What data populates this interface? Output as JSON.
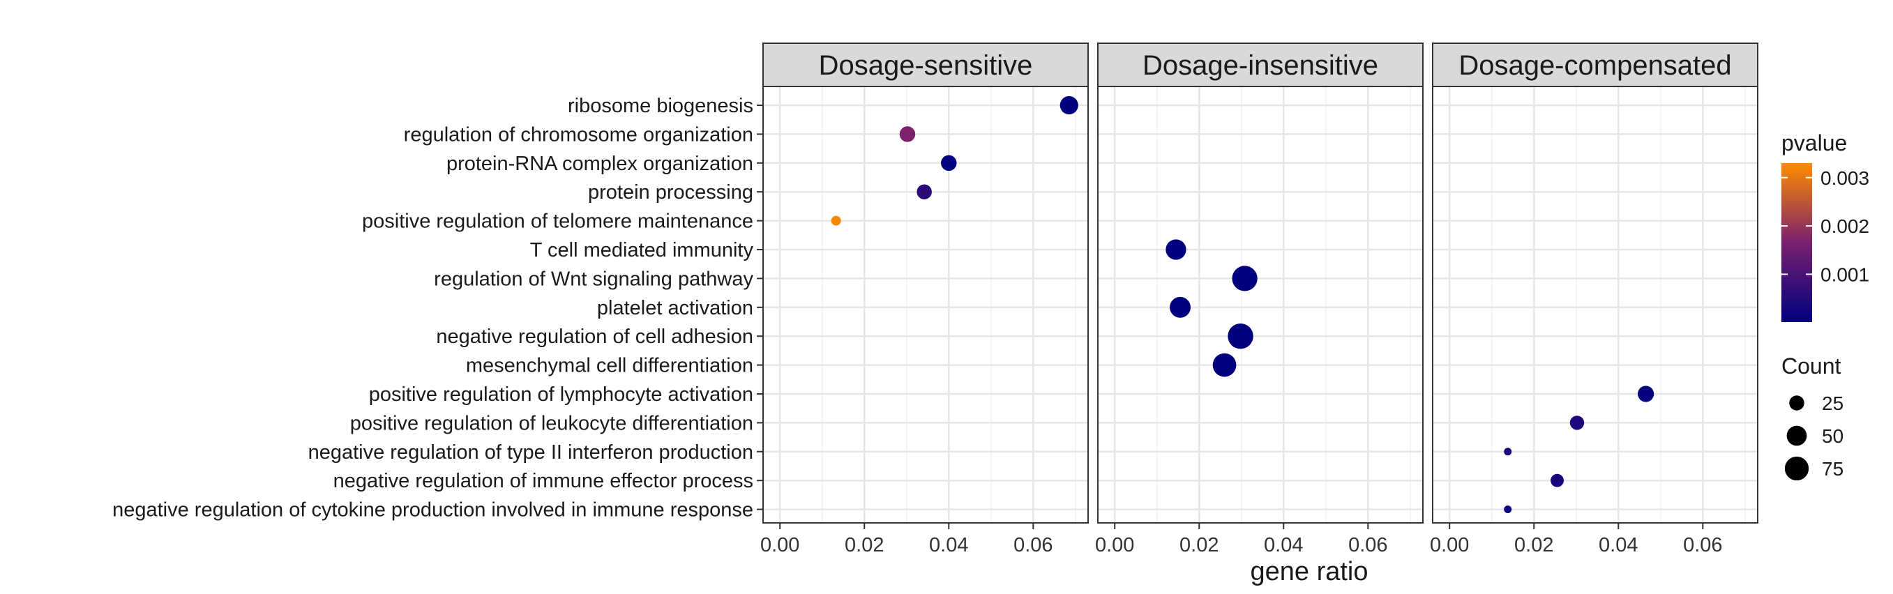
{
  "chart_data": {
    "type": "scatter",
    "xlabel": "gene ratio",
    "ylabel": "",
    "xlim": [
      -0.004,
      0.073
    ],
    "xticks": [
      "0.00",
      "0.02",
      "0.04",
      "0.06"
    ],
    "xtick_values": [
      0,
      0.02,
      0.04,
      0.06
    ],
    "grid": true,
    "legend_position": "right",
    "categories": [
      "ribosome biogenesis",
      "regulation of chromosome organization",
      "protein-RNA complex organization",
      "protein processing",
      "positive regulation of telomere maintenance",
      "T cell mediated immunity",
      "regulation of Wnt signaling pathway",
      "platelet activation",
      "negative regulation of cell adhesion",
      "mesenchymal cell differentiation",
      "positive regulation of lymphocyte activation",
      "positive regulation of leukocyte differentiation",
      "negative regulation of type II interferon production",
      "negative regulation of immune effector process",
      "negative regulation of cytokine production involved in immune response"
    ],
    "panels": [
      {
        "name": "Dosage-sensitive",
        "points": [
          {
            "category": "ribosome biogenesis",
            "x": 0.0685,
            "count": 40,
            "pvalue": 1e-05
          },
          {
            "category": "regulation of chromosome organization",
            "x": 0.0302,
            "count": 28,
            "pvalue": 0.0017
          },
          {
            "category": "protein-RNA complex organization",
            "x": 0.04,
            "count": 28,
            "pvalue": 5e-05
          },
          {
            "category": "protein processing",
            "x": 0.0342,
            "count": 25,
            "pvalue": 0.0006
          },
          {
            "category": "positive regulation of telomere maintenance",
            "x": 0.0133,
            "count": 8,
            "pvalue": 0.0032
          }
        ]
      },
      {
        "name": "Dosage-insensitive",
        "points": [
          {
            "category": "T cell mediated immunity",
            "x": 0.0145,
            "count": 52,
            "pvalue": 1e-05
          },
          {
            "category": "regulation of Wnt signaling pathway",
            "x": 0.0308,
            "count": 85,
            "pvalue": 1e-05
          },
          {
            "category": "platelet activation",
            "x": 0.0155,
            "count": 55,
            "pvalue": 1e-05
          },
          {
            "category": "negative regulation of cell adhesion",
            "x": 0.0298,
            "count": 86,
            "pvalue": 1e-05
          },
          {
            "category": "mesenchymal cell differentiation",
            "x": 0.026,
            "count": 72,
            "pvalue": 1e-05
          }
        ]
      },
      {
        "name": "Dosage-compensated",
        "points": [
          {
            "category": "positive regulation of lymphocyte activation",
            "x": 0.0465,
            "count": 30,
            "pvalue": 0.0001
          },
          {
            "category": "positive regulation of leukocyte differentiation",
            "x": 0.0302,
            "count": 22,
            "pvalue": 0.0004
          },
          {
            "category": "negative regulation of type II interferon production",
            "x": 0.0138,
            "count": 4,
            "pvalue": 0.0004
          },
          {
            "category": "negative regulation of immune effector process",
            "x": 0.0255,
            "count": 18,
            "pvalue": 0.0003
          },
          {
            "category": "negative regulation of cytokine production involved in immune response",
            "x": 0.0138,
            "count": 4,
            "pvalue": 0.0002
          }
        ]
      }
    ],
    "color_legend": {
      "title": "pvalue",
      "low_color": "#00007f",
      "mid_color": "#7a1f6e",
      "high_color": "#ff8c00",
      "range": [
        1e-05,
        0.0033
      ],
      "ticks": [
        "0.001",
        "0.002",
        "0.003"
      ],
      "tick_values": [
        0.001,
        0.002,
        0.003
      ]
    },
    "size_legend": {
      "title": "Count",
      "ticks": [
        "25",
        "50",
        "75"
      ],
      "tick_values": [
        25,
        50,
        75
      ]
    }
  }
}
